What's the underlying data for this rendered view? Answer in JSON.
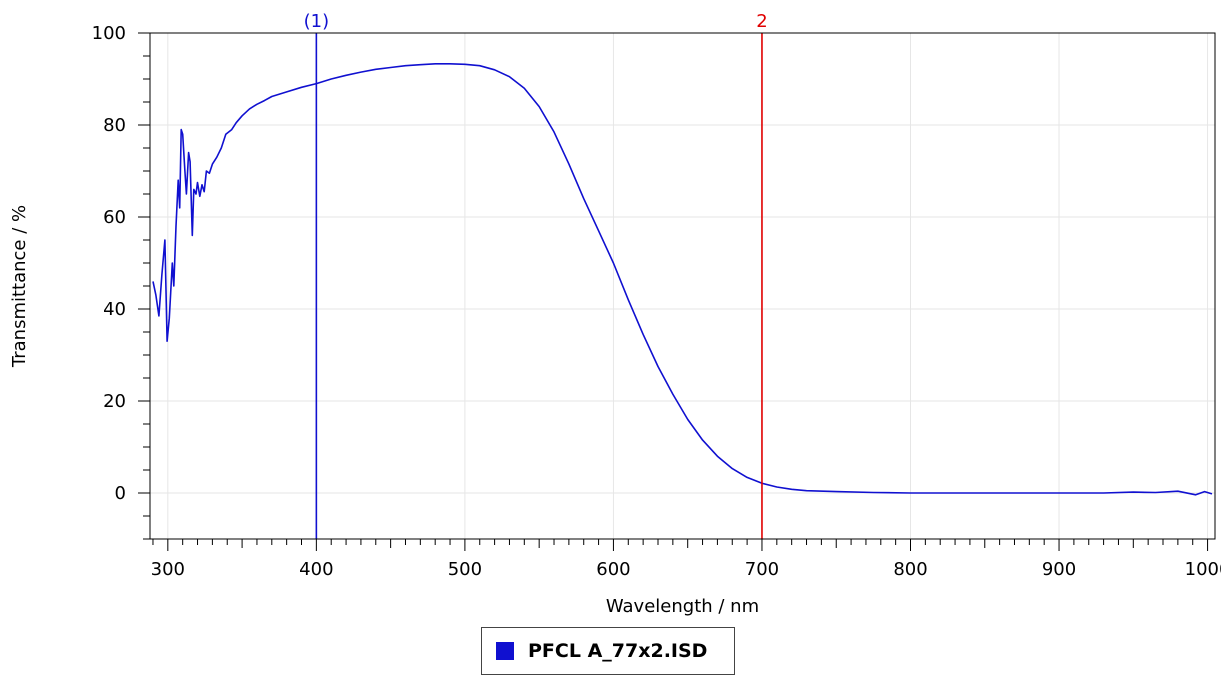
{
  "chart_data": {
    "type": "line",
    "title": "",
    "xlabel": "Wavelength / nm",
    "ylabel": "Transmittance / %",
    "xlim": [
      288,
      1005
    ],
    "ylim": [
      -10,
      100
    ],
    "grid": true,
    "legend_position": "bottom-center",
    "x_ticks": [
      "300",
      "400",
      "500",
      "600",
      "700",
      "800",
      "900",
      "1000"
    ],
    "y_ticks": [
      "-0",
      "0",
      "20",
      "40",
      "60",
      "80",
      "100"
    ],
    "series": [
      {
        "name": "PFCL A_77x2.ISD",
        "color": "#1010d0",
        "points": [
          [
            290,
            46
          ],
          [
            292,
            43
          ],
          [
            294,
            38.5
          ],
          [
            296,
            47.5
          ],
          [
            298,
            55
          ],
          [
            299.5,
            33
          ],
          [
            301,
            38
          ],
          [
            303,
            50
          ],
          [
            304,
            45
          ],
          [
            305.5,
            58
          ],
          [
            307,
            68
          ],
          [
            308,
            62
          ],
          [
            309,
            79
          ],
          [
            310,
            78
          ],
          [
            311.5,
            70
          ],
          [
            312.5,
            65
          ],
          [
            314,
            74
          ],
          [
            315,
            72
          ],
          [
            316.5,
            56
          ],
          [
            317.5,
            66
          ],
          [
            319,
            65
          ],
          [
            320,
            67.5
          ],
          [
            321.5,
            64.5
          ],
          [
            323,
            67
          ],
          [
            324.5,
            65.5
          ],
          [
            326,
            70
          ],
          [
            328,
            69.5
          ],
          [
            330,
            71.5
          ],
          [
            333,
            73
          ],
          [
            336,
            75
          ],
          [
            339,
            78
          ],
          [
            343,
            79
          ],
          [
            346,
            80.5
          ],
          [
            350,
            82
          ],
          [
            355,
            83.5
          ],
          [
            360,
            84.5
          ],
          [
            365,
            85.3
          ],
          [
            370,
            86.2
          ],
          [
            380,
            87.2
          ],
          [
            390,
            88.2
          ],
          [
            400,
            89
          ],
          [
            410,
            90
          ],
          [
            420,
            90.8
          ],
          [
            430,
            91.5
          ],
          [
            440,
            92.1
          ],
          [
            450,
            92.5
          ],
          [
            460,
            92.9
          ],
          [
            470,
            93.1
          ],
          [
            480,
            93.3
          ],
          [
            490,
            93.3
          ],
          [
            500,
            93.2
          ],
          [
            510,
            92.9
          ],
          [
            520,
            92
          ],
          [
            530,
            90.5
          ],
          [
            540,
            88
          ],
          [
            550,
            84
          ],
          [
            560,
            78.5
          ],
          [
            570,
            71.5
          ],
          [
            580,
            64
          ],
          [
            590,
            57
          ],
          [
            600,
            50
          ],
          [
            610,
            42
          ],
          [
            620,
            34.5
          ],
          [
            630,
            27.5
          ],
          [
            640,
            21.5
          ],
          [
            650,
            16
          ],
          [
            660,
            11.5
          ],
          [
            670,
            8
          ],
          [
            680,
            5.3
          ],
          [
            690,
            3.4
          ],
          [
            700,
            2.1
          ],
          [
            710,
            1.3
          ],
          [
            720,
            0.8
          ],
          [
            730,
            0.5
          ],
          [
            750,
            0.3
          ],
          [
            775,
            0.1
          ],
          [
            800,
            0
          ],
          [
            850,
            0
          ],
          [
            900,
            0
          ],
          [
            930,
            0
          ],
          [
            950,
            0.2
          ],
          [
            965,
            0.1
          ],
          [
            980,
            0.4
          ],
          [
            992,
            -0.4
          ],
          [
            998,
            0.3
          ],
          [
            1003,
            -0.2
          ]
        ]
      }
    ],
    "markers": [
      {
        "label": "(1)",
        "x": 400,
        "color": "#1010d0"
      },
      {
        "label": "2",
        "x": 700,
        "color": "#e00000"
      }
    ]
  }
}
